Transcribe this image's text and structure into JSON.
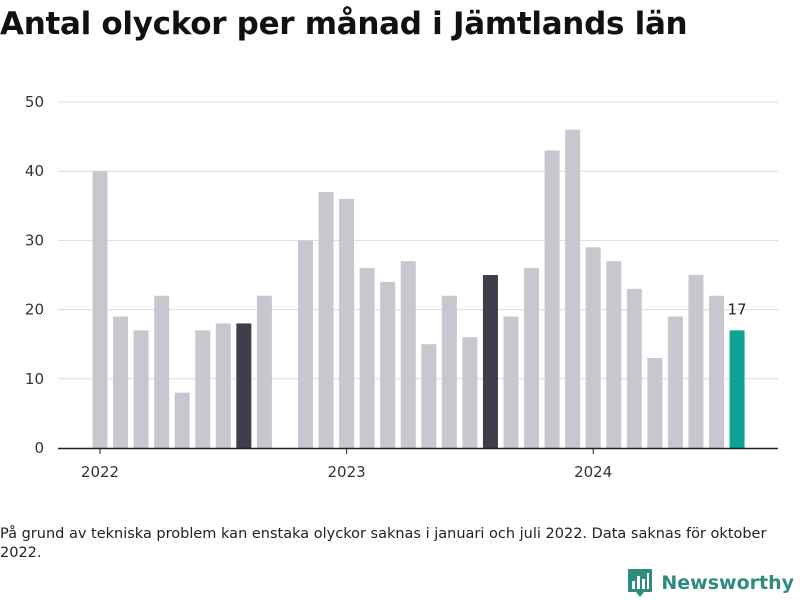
{
  "title": "Antal olyckor per månad i Jämtlands län",
  "note": "På grund av tekniska problem kan enstaka olyckor saknas i januari och juli 2022. Data saknas för oktober 2022.",
  "brand": {
    "name": "Newsworthy",
    "icon": "bar-chart-pin-icon"
  },
  "colors": {
    "default": "#c8c7cf",
    "highlight": "#3e3d49",
    "latest": "#0ca394",
    "brand": "#2f8a7f"
  },
  "chart_data": {
    "type": "bar",
    "title": "Antal olyckor per månad i Jämtlands län",
    "xlabel": "",
    "ylabel": "",
    "ylim": [
      0,
      50
    ],
    "yticks": [
      0,
      10,
      20,
      30,
      40,
      50
    ],
    "grid": true,
    "xtick_labels": [
      {
        "label": "2022",
        "month": "2022-01"
      },
      {
        "label": "2023",
        "month": "2023-01"
      },
      {
        "label": "2024",
        "month": "2024-01"
      }
    ],
    "bars": [
      {
        "month": "2022-01",
        "value": 40,
        "style": "default"
      },
      {
        "month": "2022-02",
        "value": 19,
        "style": "default"
      },
      {
        "month": "2022-03",
        "value": 17,
        "style": "default"
      },
      {
        "month": "2022-04",
        "value": 22,
        "style": "default"
      },
      {
        "month": "2022-05",
        "value": 8,
        "style": "default"
      },
      {
        "month": "2022-06",
        "value": 17,
        "style": "default"
      },
      {
        "month": "2022-07",
        "value": 18,
        "style": "default"
      },
      {
        "month": "2022-08",
        "value": 18,
        "style": "highlight"
      },
      {
        "month": "2022-09",
        "value": 22,
        "style": "default"
      },
      {
        "month": "2022-11",
        "value": 30,
        "style": "default"
      },
      {
        "month": "2022-12",
        "value": 37,
        "style": "default"
      },
      {
        "month": "2023-01",
        "value": 36,
        "style": "default"
      },
      {
        "month": "2023-02",
        "value": 26,
        "style": "default"
      },
      {
        "month": "2023-03",
        "value": 24,
        "style": "default"
      },
      {
        "month": "2023-04",
        "value": 27,
        "style": "default"
      },
      {
        "month": "2023-05",
        "value": 15,
        "style": "default"
      },
      {
        "month": "2023-06",
        "value": 22,
        "style": "default"
      },
      {
        "month": "2023-07",
        "value": 16,
        "style": "default"
      },
      {
        "month": "2023-08",
        "value": 25,
        "style": "highlight"
      },
      {
        "month": "2023-09",
        "value": 19,
        "style": "default"
      },
      {
        "month": "2023-10",
        "value": 26,
        "style": "default"
      },
      {
        "month": "2023-11",
        "value": 43,
        "style": "default"
      },
      {
        "month": "2023-12",
        "value": 46,
        "style": "default"
      },
      {
        "month": "2024-01",
        "value": 29,
        "style": "default"
      },
      {
        "month": "2024-02",
        "value": 27,
        "style": "default"
      },
      {
        "month": "2024-03",
        "value": 23,
        "style": "default"
      },
      {
        "month": "2024-04",
        "value": 13,
        "style": "default"
      },
      {
        "month": "2024-05",
        "value": 19,
        "style": "default"
      },
      {
        "month": "2024-06",
        "value": 25,
        "style": "default"
      },
      {
        "month": "2024-07",
        "value": 22,
        "style": "default"
      },
      {
        "month": "2024-08",
        "value": 17,
        "style": "latest",
        "label": "17"
      }
    ]
  }
}
